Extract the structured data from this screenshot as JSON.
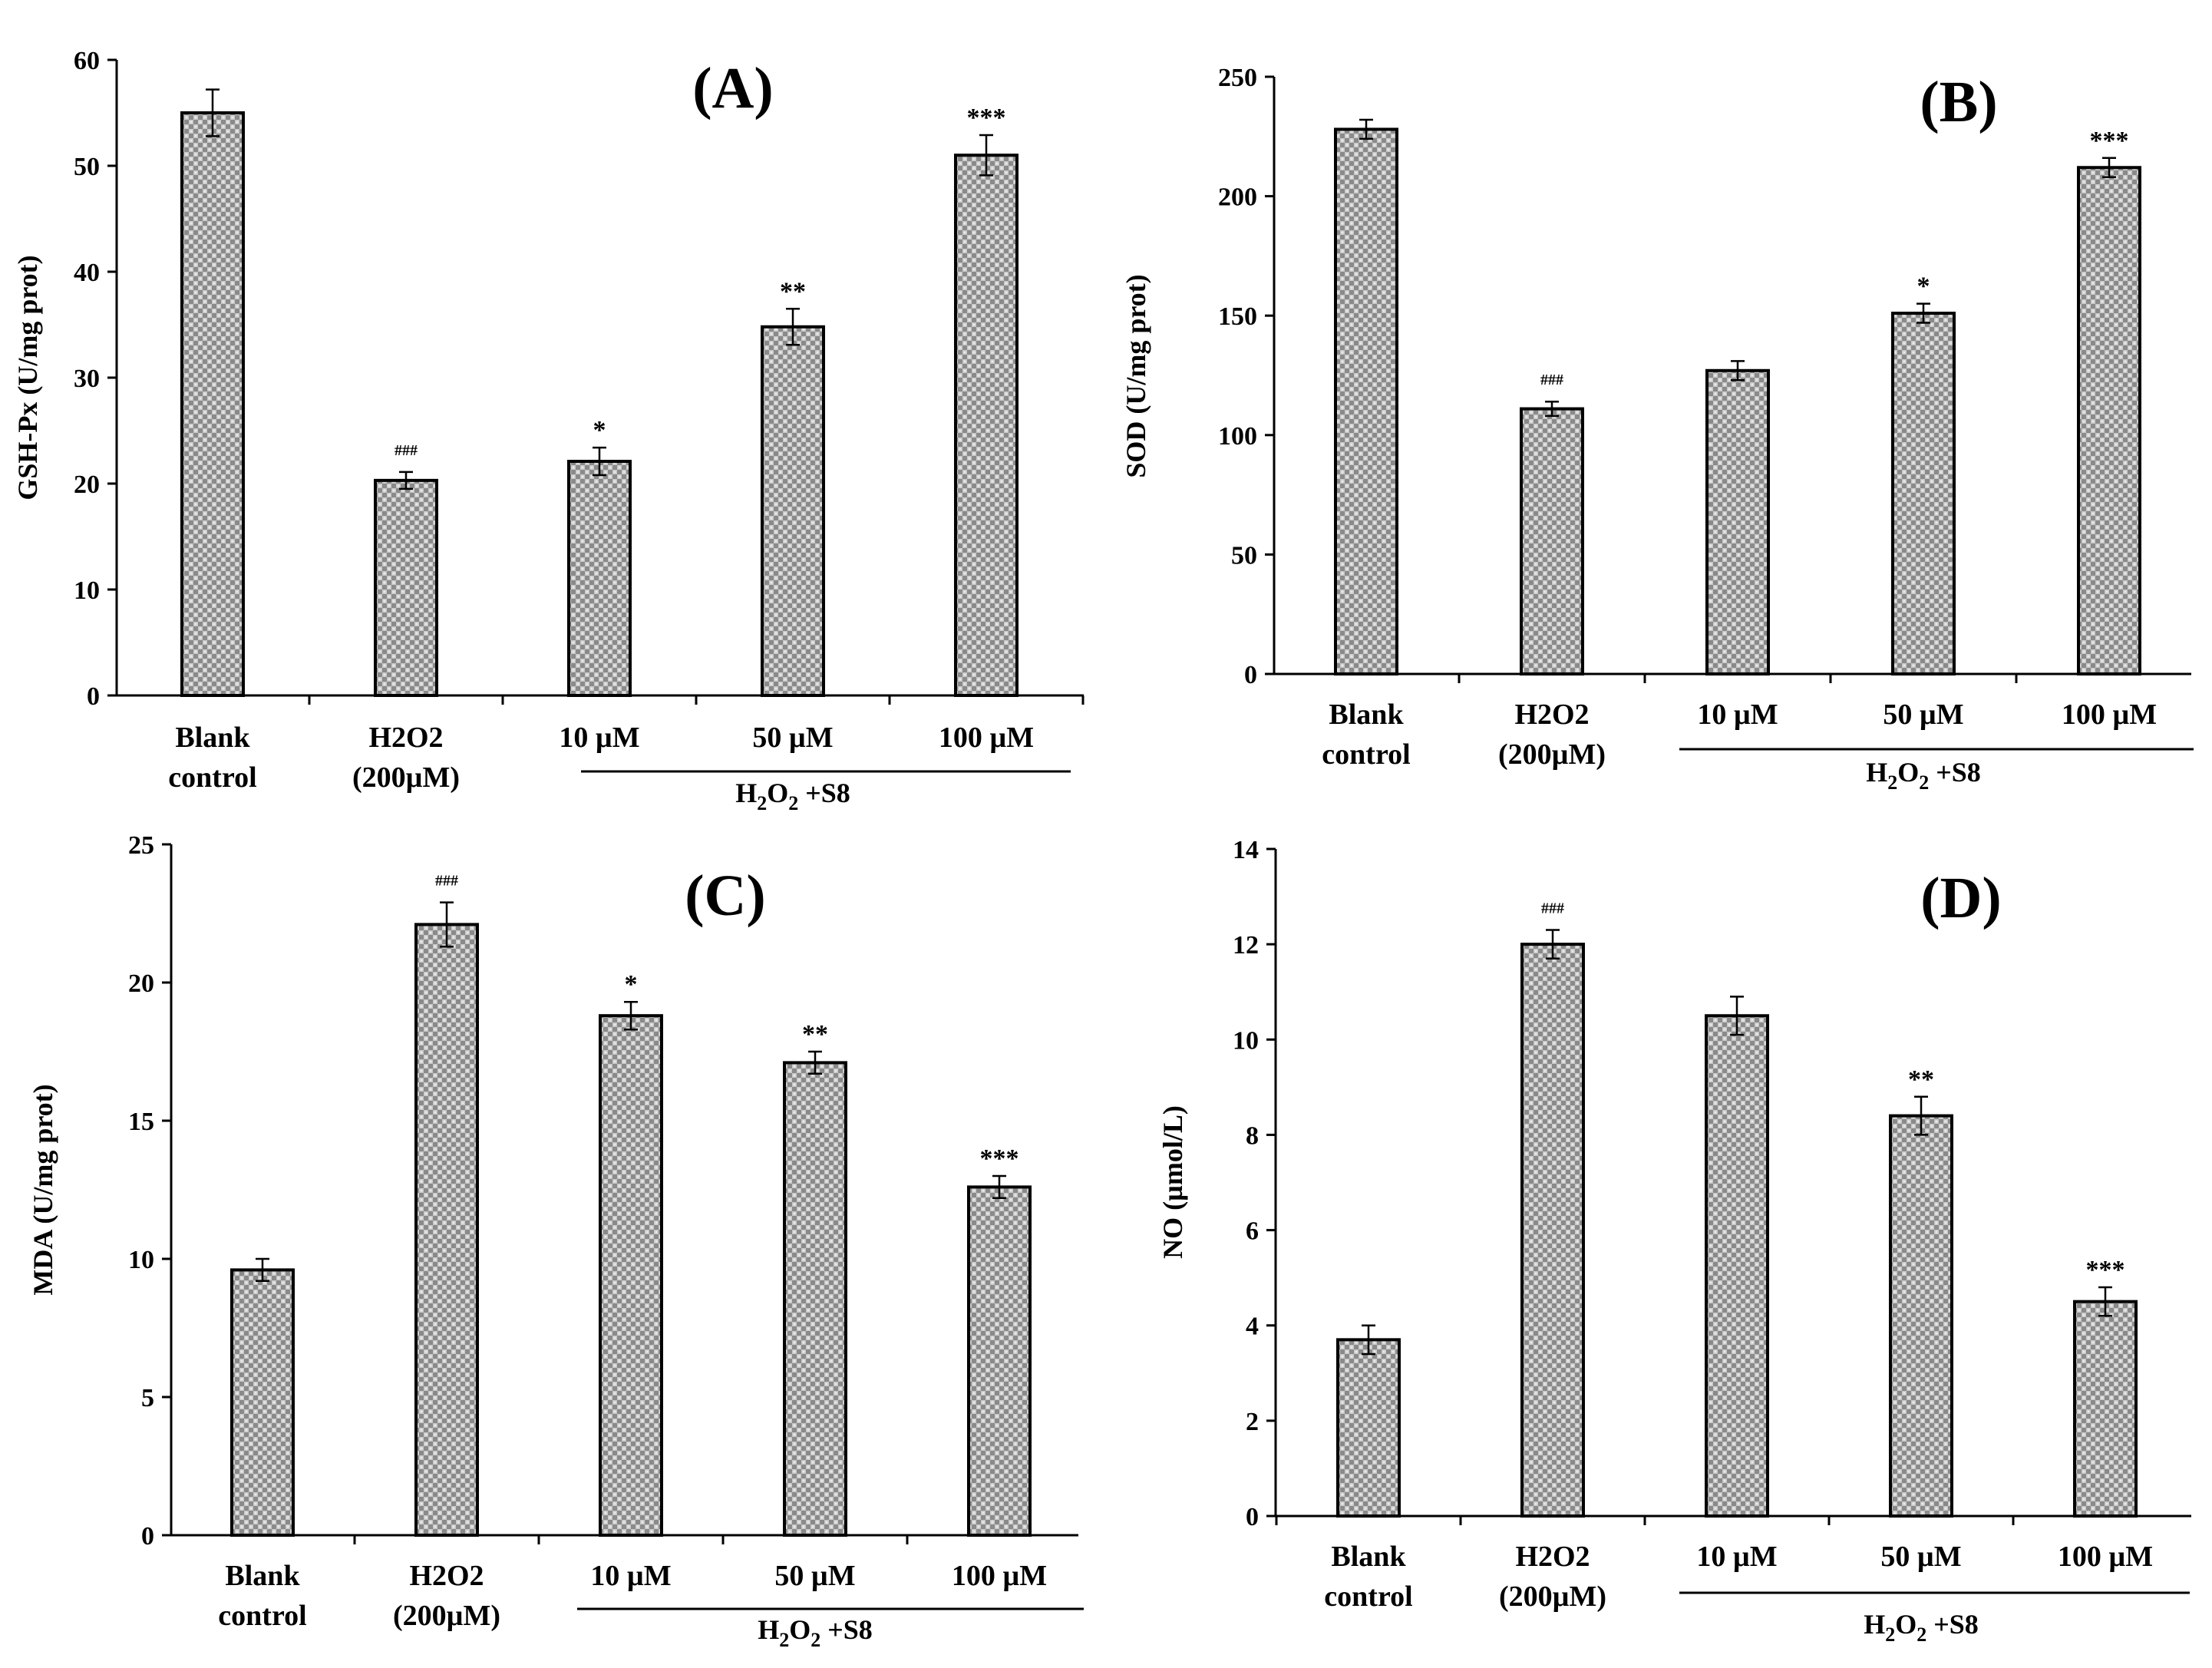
{
  "figure": {
    "group_label": {
      "main": "H",
      "sub": "2",
      "mid": "O",
      "sub2": "2",
      "tail": " +S8"
    },
    "category_lines": [
      [
        "Blank",
        "control"
      ],
      [
        "H2O2",
        "(200µM)"
      ],
      [
        "10 µM"
      ],
      [
        "50 µM"
      ],
      [
        "100 µM"
      ]
    ]
  },
  "chart_data": [
    {
      "type": "bar",
      "panel": "(A)",
      "title": "(A)",
      "xlabel": "",
      "ylabel": "GSH-Px (U/mg prot)",
      "categories": [
        "Blank control",
        "H2O2 (200µM)",
        "10 µM",
        "50 µM",
        "100 µM"
      ],
      "values": [
        55.0,
        20.3,
        22.1,
        34.8,
        51.0
      ],
      "errors": [
        2.2,
        0.8,
        1.3,
        1.7,
        1.9
      ],
      "annotations": [
        "",
        "###",
        "*",
        "**",
        "***"
      ],
      "ylim": [
        0,
        60
      ],
      "yticks": [
        0,
        10,
        20,
        30,
        40,
        50,
        60
      ],
      "group": "H2O2 +S8 (10 µM, 50 µM, 100 µM)"
    },
    {
      "type": "bar",
      "panel": "(B)",
      "title": "(B)",
      "xlabel": "",
      "ylabel": "SOD (U/mg prot)",
      "categories": [
        "Blank control",
        "H2O2 (200µM)",
        "10 µM",
        "50 µM",
        "100 µM"
      ],
      "values": [
        228,
        111,
        127,
        151,
        212
      ],
      "errors": [
        4,
        3,
        4,
        4,
        4
      ],
      "annotations": [
        "",
        "###",
        "",
        "*",
        "***"
      ],
      "ylim": [
        0,
        250
      ],
      "yticks": [
        0,
        50,
        100,
        150,
        200,
        250
      ],
      "group": "H2O2 +S8 (10 µM, 50 µM, 100 µM)"
    },
    {
      "type": "bar",
      "panel": "(C)",
      "title": "(C)",
      "xlabel": "",
      "ylabel": "MDA (U/mg prot)",
      "categories": [
        "Blank control",
        "H2O2 (200µM)",
        "10 µM",
        "50 µM",
        "100 µM"
      ],
      "values": [
        9.6,
        22.1,
        18.8,
        17.1,
        12.6
      ],
      "errors": [
        0.4,
        0.8,
        0.5,
        0.4,
        0.4
      ],
      "annotations": [
        "",
        "###",
        "*",
        "**",
        "***"
      ],
      "ylim": [
        0,
        25
      ],
      "yticks": [
        0,
        5,
        10,
        15,
        20,
        25
      ],
      "group": "H2O2 +S8 (10 µM, 50 µM, 100 µM)"
    },
    {
      "type": "bar",
      "panel": "(D)",
      "title": "(D)",
      "xlabel": "",
      "ylabel": "NO (µmol/L)",
      "categories": [
        "Blank control",
        "H2O2 (200µM)",
        "10 µM",
        "50 µM",
        "100 µM"
      ],
      "values": [
        3.7,
        12.0,
        10.5,
        8.4,
        4.5
      ],
      "errors": [
        0.3,
        0.3,
        0.4,
        0.4,
        0.3
      ],
      "annotations": [
        "",
        "###",
        "",
        "**",
        "***"
      ],
      "ylim": [
        0,
        14
      ],
      "yticks": [
        0,
        2,
        4,
        6,
        8,
        10,
        12,
        14
      ],
      "group": "H2O2 +S8 (10 µM, 50 µM, 100 µM)"
    }
  ]
}
